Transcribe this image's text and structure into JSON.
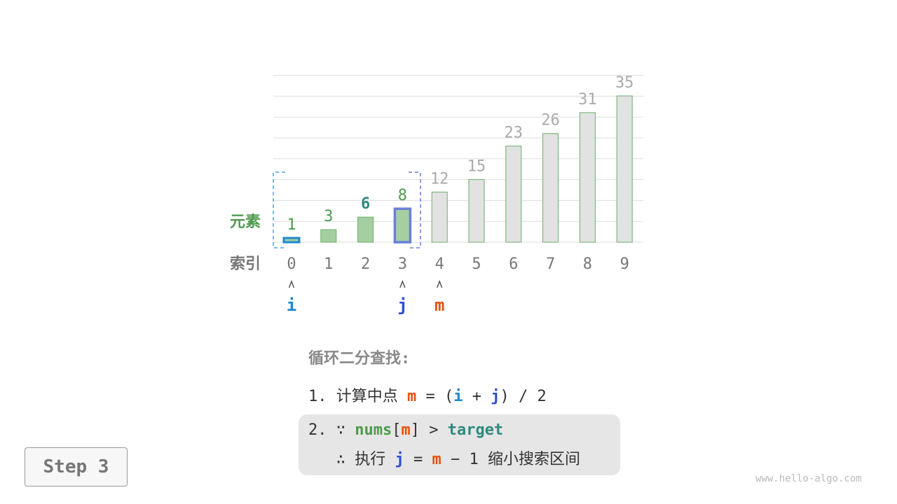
{
  "chart_data": {
    "type": "bar",
    "row_labels": {
      "elements": "元素",
      "indices": "索引"
    },
    "categories": [
      "0",
      "1",
      "2",
      "3",
      "4",
      "5",
      "6",
      "7",
      "8",
      "9"
    ],
    "values": [
      1,
      3,
      6,
      8,
      12,
      15,
      23,
      26,
      31,
      35
    ],
    "ylim": [
      0,
      40
    ],
    "grid": true,
    "active_range": [
      0,
      3
    ],
    "target_index": 2,
    "pointers": [
      {
        "label": "i",
        "index": 0
      },
      {
        "label": "j",
        "index": 3
      },
      {
        "label": "m",
        "index": 4
      }
    ],
    "colors": {
      "active_fill": "#a5cfa0",
      "inactive_fill": "#e2e2e2",
      "bar_border": "#6aae6a",
      "active_label": "#4e9a4e",
      "target_label": "#2e8b7e",
      "inactive_label": "#aaaaaa",
      "i": "#1e88d0",
      "j": "#2f4fd0",
      "m": "#e8500f"
    }
  },
  "text": {
    "title": "循环二分查找:",
    "l1": {
      "num": "1.",
      "desc": "计算中点",
      "m": "m",
      "eq": "=",
      "lp": "(",
      "i": "i",
      "plus": "+",
      "j": "j",
      "rp": ")",
      "div": "/ 2"
    },
    "l2": {
      "num": "2.",
      "because": "∵",
      "nums": "nums",
      "lb": "[",
      "m": "m",
      "rb": "]",
      "gt": ">",
      "target": "target"
    },
    "l3": {
      "therefore": "∴",
      "exec": "执行",
      "j": "j",
      "eq": "=",
      "m": "m",
      "minus": "− 1",
      "desc": "缩小搜索区间"
    }
  },
  "step": "Step 3",
  "watermark": "www.hello-algo.com"
}
